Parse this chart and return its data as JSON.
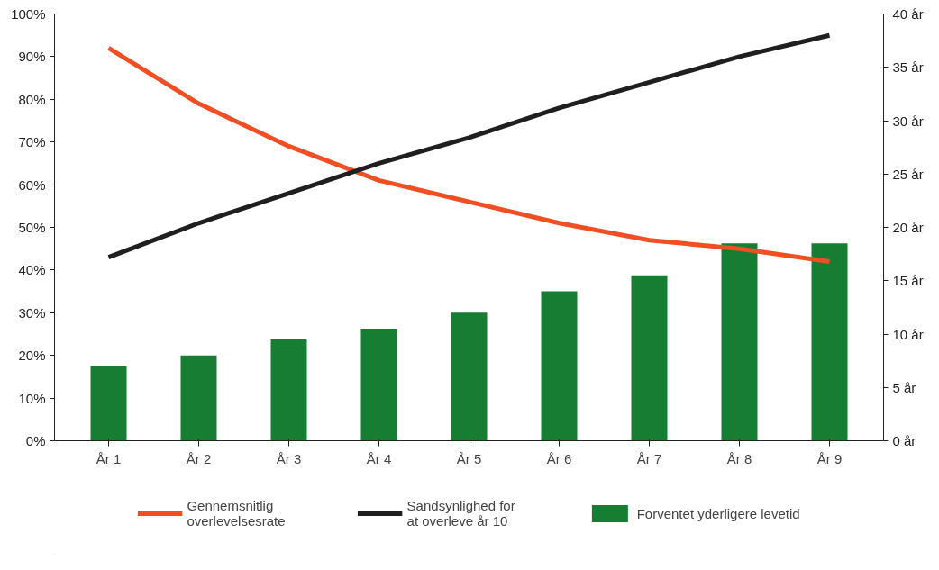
{
  "chart_data": {
    "type": "line",
    "categories": [
      "År 1",
      "År 2",
      "År 3",
      "År 4",
      "År 5",
      "År 6",
      "År 7",
      "År 8",
      "År 9"
    ],
    "series": [
      {
        "name": "Forventet yderligere levetid",
        "type": "bar",
        "axis": "y2",
        "color": "#167d32",
        "values": [
          7,
          8,
          9.5,
          10.5,
          12,
          14,
          15.5,
          18.5,
          18.5
        ]
      },
      {
        "name": "Gennemsnitlig\noverlevelsesrate",
        "color": "#f04e23",
        "values": [
          92,
          79,
          69,
          61,
          56,
          51,
          47,
          45,
          42
        ]
      },
      {
        "name": "Sandsynlighed for\nat overleve år 10",
        "color": "#1f1f1f",
        "values": [
          43,
          51,
          58,
          65,
          71,
          78,
          84,
          90,
          95
        ]
      }
    ],
    "ylim": [
      0,
      100
    ],
    "yticks": [
      {
        "value": 0,
        "label": "0%"
      },
      {
        "value": 10,
        "label": "10%"
      },
      {
        "value": 20,
        "label": "20%"
      },
      {
        "value": 30,
        "label": "30%"
      },
      {
        "value": 40,
        "label": "40%"
      },
      {
        "value": 50,
        "label": "50%"
      },
      {
        "value": 60,
        "label": "60%"
      },
      {
        "value": 70,
        "label": "70%"
      },
      {
        "value": 80,
        "label": "80%"
      },
      {
        "value": 90,
        "label": "90%"
      },
      {
        "value": 100,
        "label": "100%"
      }
    ],
    "y2lim": [
      0,
      40
    ],
    "y2ticks": [
      {
        "value": 0,
        "label": "0 år"
      },
      {
        "value": 5,
        "label": "5 år"
      },
      {
        "value": 10,
        "label": "10 år"
      },
      {
        "value": 15,
        "label": "15 år"
      },
      {
        "value": 20,
        "label": "20 år"
      },
      {
        "value": 25,
        "label": "25 år"
      },
      {
        "value": 30,
        "label": "30 år"
      },
      {
        "value": 35,
        "label": "35 år"
      },
      {
        "value": 40,
        "label": "40 år"
      }
    ],
    "grid": false,
    "legend": "bottom",
    "line_style": "solid",
    "marker": "none"
  }
}
